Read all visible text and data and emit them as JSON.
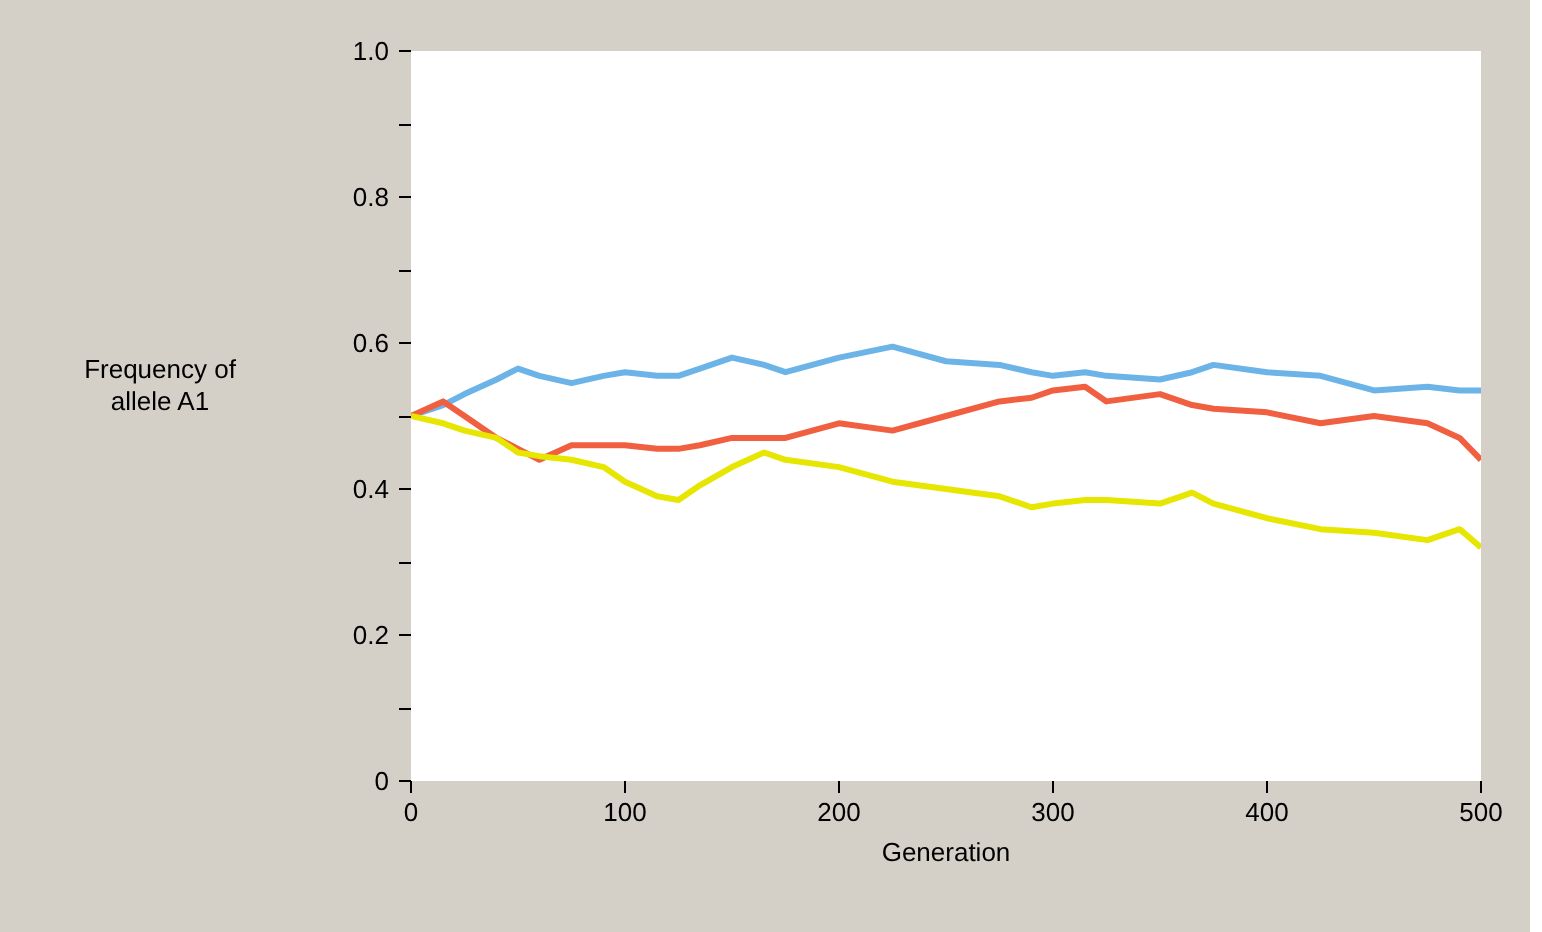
{
  "chart_data": {
    "type": "line",
    "xlabel": "Generation",
    "ylabel": "Frequency of\nallele A1",
    "x": [
      0,
      15,
      25,
      40,
      50,
      60,
      75,
      90,
      100,
      115,
      125,
      135,
      150,
      165,
      175,
      200,
      225,
      250,
      275,
      290,
      300,
      315,
      325,
      350,
      365,
      375,
      400,
      425,
      450,
      475,
      490,
      500
    ],
    "series": [
      {
        "color": "#6cb4e8",
        "values": [
          0.5,
          0.515,
          0.53,
          0.55,
          0.565,
          0.555,
          0.545,
          0.555,
          0.56,
          0.555,
          0.555,
          0.565,
          0.58,
          0.57,
          0.56,
          0.58,
          0.595,
          0.575,
          0.57,
          0.56,
          0.555,
          0.56,
          0.555,
          0.55,
          0.56,
          0.57,
          0.56,
          0.555,
          0.535,
          0.54,
          0.535,
          0.535
        ]
      },
      {
        "color": "#f06040",
        "values": [
          0.5,
          0.52,
          0.5,
          0.47,
          0.455,
          0.44,
          0.46,
          0.46,
          0.46,
          0.455,
          0.455,
          0.46,
          0.47,
          0.47,
          0.47,
          0.49,
          0.48,
          0.5,
          0.52,
          0.525,
          0.535,
          0.54,
          0.52,
          0.53,
          0.515,
          0.51,
          0.505,
          0.49,
          0.5,
          0.49,
          0.47,
          0.44
        ]
      },
      {
        "color": "#e6e600",
        "values": [
          0.5,
          0.49,
          0.48,
          0.47,
          0.45,
          0.445,
          0.44,
          0.43,
          0.41,
          0.39,
          0.385,
          0.405,
          0.43,
          0.45,
          0.44,
          0.43,
          0.41,
          0.4,
          0.39,
          0.375,
          0.38,
          0.385,
          0.385,
          0.38,
          0.395,
          0.38,
          0.36,
          0.345,
          0.34,
          0.33,
          0.345,
          0.32
        ]
      }
    ],
    "xlim": [
      0,
      500
    ],
    "xticks": [
      0,
      100,
      200,
      300,
      400,
      500
    ],
    "ylim": [
      0,
      1.0
    ],
    "yticks": [
      {
        "value": 0,
        "label": "0"
      },
      {
        "value": 0.1,
        "label": null
      },
      0.2,
      {
        "value": 0.3,
        "label": null
      },
      0.4,
      {
        "value": 0.5,
        "label": null
      },
      0.6,
      {
        "value": 0.7,
        "label": null
      },
      0.8,
      {
        "value": 0.9,
        "label": null
      },
      {
        "value": 1.0,
        "label": "1.0"
      }
    ],
    "grid": false,
    "line_style": "solid",
    "marker": "none"
  }
}
